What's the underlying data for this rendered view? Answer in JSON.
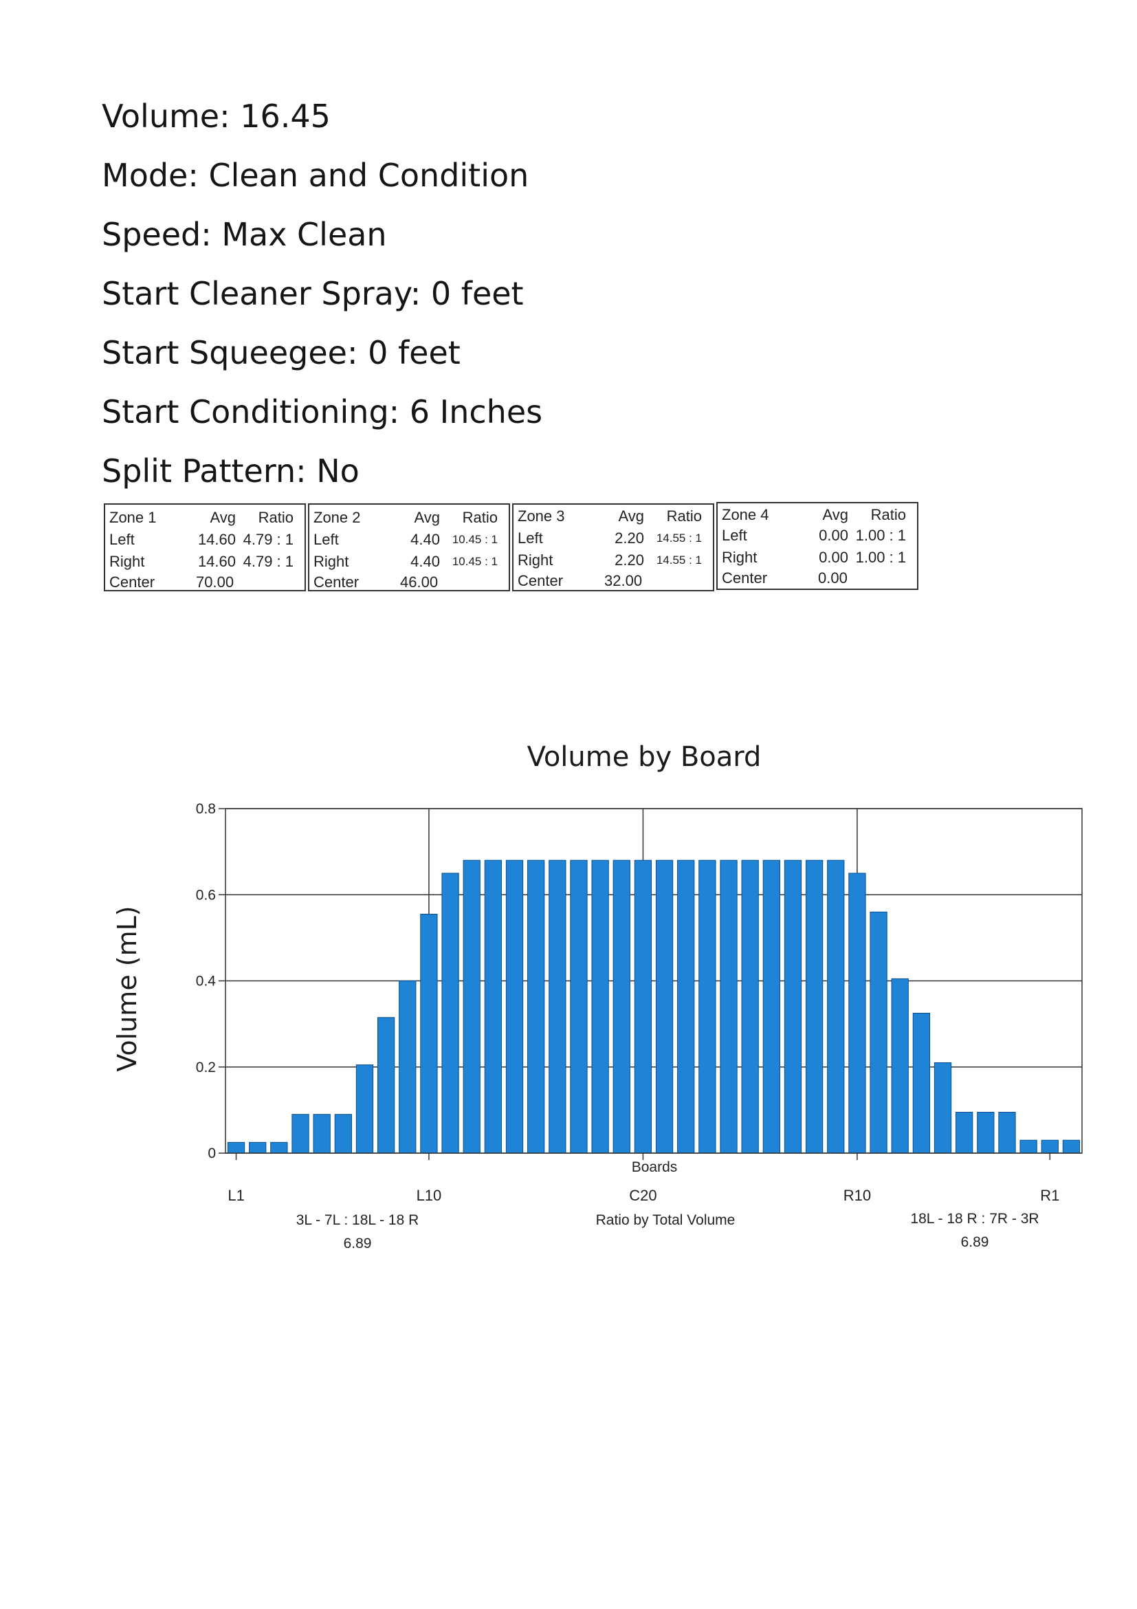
{
  "settings": [
    "Volume: 16.45",
    "Mode: Clean and Condition",
    "Speed: Max Clean",
    "Start Cleaner Spray: 0 feet",
    "Start Squeegee: 0 feet",
    "Start Conditioning: 6 Inches",
    "Split Pattern: No"
  ],
  "zones": [
    {
      "name": "Zone 1",
      "avg_label": "Avg",
      "ratio_label": "Ratio",
      "left": {
        "label": "Left",
        "avg": "14.60",
        "ratio": "4.79 : 1"
      },
      "right": {
        "label": "Right",
        "avg": "14.60",
        "ratio": "4.79 : 1"
      },
      "center": {
        "label": "Center",
        "avg": "70.00"
      }
    },
    {
      "name": "Zone 2",
      "avg_label": "Avg",
      "ratio_label": "Ratio",
      "left": {
        "label": "Left",
        "avg": "4.40",
        "ratio": "10.45 : 1"
      },
      "right": {
        "label": "Right",
        "avg": "4.40",
        "ratio": "10.45 : 1"
      },
      "center": {
        "label": "Center",
        "avg": "46.00"
      }
    },
    {
      "name": "Zone 3",
      "avg_label": "Avg",
      "ratio_label": "Ratio",
      "left": {
        "label": "Left",
        "avg": "2.20",
        "ratio": "14.55 : 1"
      },
      "right": {
        "label": "Right",
        "avg": "2.20",
        "ratio": "14.55 : 1"
      },
      "center": {
        "label": "Center",
        "avg": "32.00"
      }
    },
    {
      "name": "Zone 4",
      "avg_label": "Avg",
      "ratio_label": "Ratio",
      "left": {
        "label": "Left",
        "avg": "0.00",
        "ratio": "1.00 : 1"
      },
      "right": {
        "label": "Right",
        "avg": "0.00",
        "ratio": "1.00 : 1"
      },
      "center": {
        "label": "Center",
        "avg": "0.00"
      }
    }
  ],
  "footer": {
    "left_ratio_label": "3L - 7L : 18L - 18 R",
    "left_ratio_value": "6.89",
    "center_label": "Ratio by Total Volume",
    "right_ratio_label": "18L - 18 R : 7R - 3R",
    "right_ratio_value": "6.89"
  },
  "colors": {
    "bar": "#1f83d6",
    "bar_edge": "#0b4f8f",
    "grid": "#333333"
  },
  "chart_data": {
    "type": "bar",
    "title": "Volume by Board",
    "xlabel": "Boards",
    "ylabel": "Volume (mL)",
    "ylim": [
      0,
      0.8
    ],
    "yticks": [
      "0",
      "0.2",
      "0.4",
      "0.6",
      "0.8"
    ],
    "ytick_values": [
      0,
      0.2,
      0.4,
      0.6,
      0.8
    ],
    "x_tick_labels": [
      {
        "label": "L1",
        "board": 1
      },
      {
        "label": "L10",
        "board": 10
      },
      {
        "label": "C20",
        "board": 20
      },
      {
        "label": "R10",
        "board": 30
      },
      {
        "label": "R1",
        "board": 39
      }
    ],
    "grid": true,
    "values": [
      0.025,
      0.025,
      0.025,
      0.09,
      0.09,
      0.09,
      0.205,
      0.315,
      0.4,
      0.555,
      0.65,
      0.68,
      0.68,
      0.68,
      0.68,
      0.68,
      0.68,
      0.68,
      0.68,
      0.68,
      0.68,
      0.68,
      0.68,
      0.68,
      0.68,
      0.68,
      0.68,
      0.68,
      0.68,
      0.65,
      0.56,
      0.405,
      0.325,
      0.21,
      0.095,
      0.095,
      0.095,
      0.03,
      0.03,
      0.03
    ]
  }
}
